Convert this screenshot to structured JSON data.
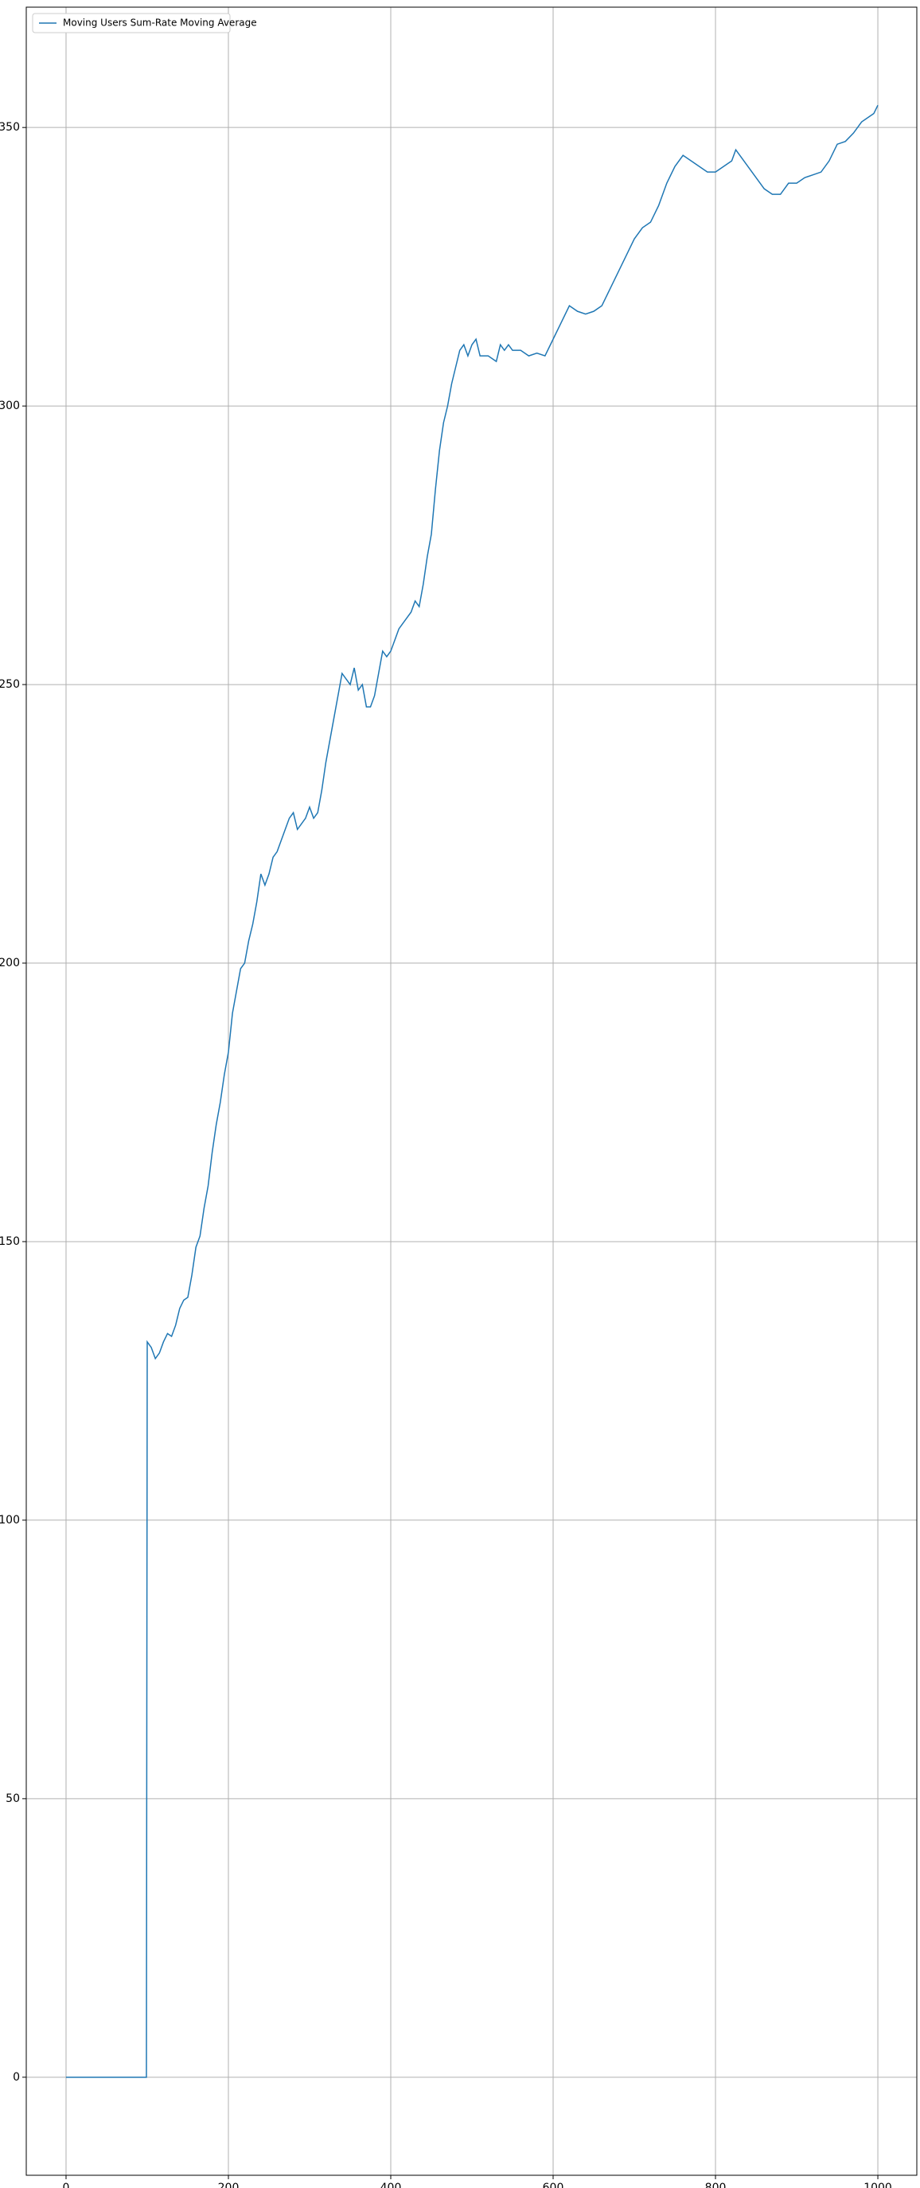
{
  "chart_data": {
    "type": "line",
    "x": [
      0,
      99,
      100,
      105,
      110,
      115,
      120,
      125,
      130,
      135,
      140,
      145,
      150,
      155,
      160,
      165,
      170,
      175,
      180,
      185,
      190,
      195,
      200,
      205,
      210,
      215,
      220,
      225,
      230,
      235,
      240,
      245,
      250,
      255,
      260,
      265,
      270,
      275,
      280,
      285,
      290,
      295,
      300,
      305,
      310,
      315,
      320,
      325,
      330,
      335,
      340,
      345,
      350,
      355,
      360,
      365,
      370,
      375,
      380,
      385,
      390,
      395,
      400,
      405,
      410,
      415,
      420,
      425,
      430,
      435,
      440,
      445,
      450,
      455,
      460,
      465,
      470,
      475,
      480,
      485,
      490,
      495,
      500,
      505,
      510,
      520,
      530,
      535,
      540,
      545,
      550,
      560,
      570,
      580,
      590,
      600,
      610,
      620,
      630,
      640,
      650,
      660,
      670,
      680,
      690,
      700,
      710,
      720,
      730,
      740,
      750,
      760,
      770,
      780,
      790,
      800,
      810,
      820,
      825,
      830,
      840,
      850,
      860,
      870,
      880,
      890,
      900,
      910,
      920,
      930,
      940,
      950,
      960,
      970,
      980,
      990,
      995,
      1000
    ],
    "series": [
      {
        "name": "Moving Users Sum-Rate Moving Average",
        "color": "#1f77b4",
        "values": [
          0,
          0,
          132,
          131,
          129,
          130,
          132,
          133.5,
          133,
          135,
          138,
          139.5,
          140,
          144,
          149,
          151,
          156,
          160,
          166,
          171,
          175,
          180,
          184,
          191,
          195,
          199,
          200,
          204,
          207,
          211,
          216,
          214,
          216,
          219,
          220,
          222,
          224,
          226,
          227,
          224,
          225,
          226,
          228,
          226,
          227,
          231,
          236,
          240,
          244,
          248,
          252,
          251,
          250,
          253,
          249,
          250,
          246,
          246,
          248,
          252,
          256,
          255,
          256,
          258,
          260,
          261,
          262,
          263,
          265,
          264,
          268,
          273,
          277,
          285,
          292,
          297,
          300,
          304,
          307,
          310,
          311,
          309,
          311,
          312,
          309,
          309,
          308,
          311,
          310,
          311,
          310,
          310,
          309,
          309.5,
          309,
          312,
          315,
          318,
          317,
          316.5,
          317,
          318,
          321,
          324,
          327,
          330,
          332,
          333,
          336,
          340,
          343,
          345,
          344,
          343,
          342,
          342,
          343,
          344,
          346,
          345,
          343,
          341,
          339,
          338,
          338,
          340,
          340,
          341,
          341.5,
          342,
          344,
          347,
          347.5,
          349,
          351,
          352,
          352.5,
          354
        ]
      }
    ],
    "xlim": [
      -49,
      1048
    ],
    "ylim": [
      -17.6,
      371.6
    ],
    "xticks": [
      0,
      200,
      400,
      600,
      800,
      1000
    ],
    "yticks": [
      0,
      50,
      100,
      150,
      200,
      250,
      300,
      350
    ],
    "grid": true,
    "legend": "upper-left"
  }
}
